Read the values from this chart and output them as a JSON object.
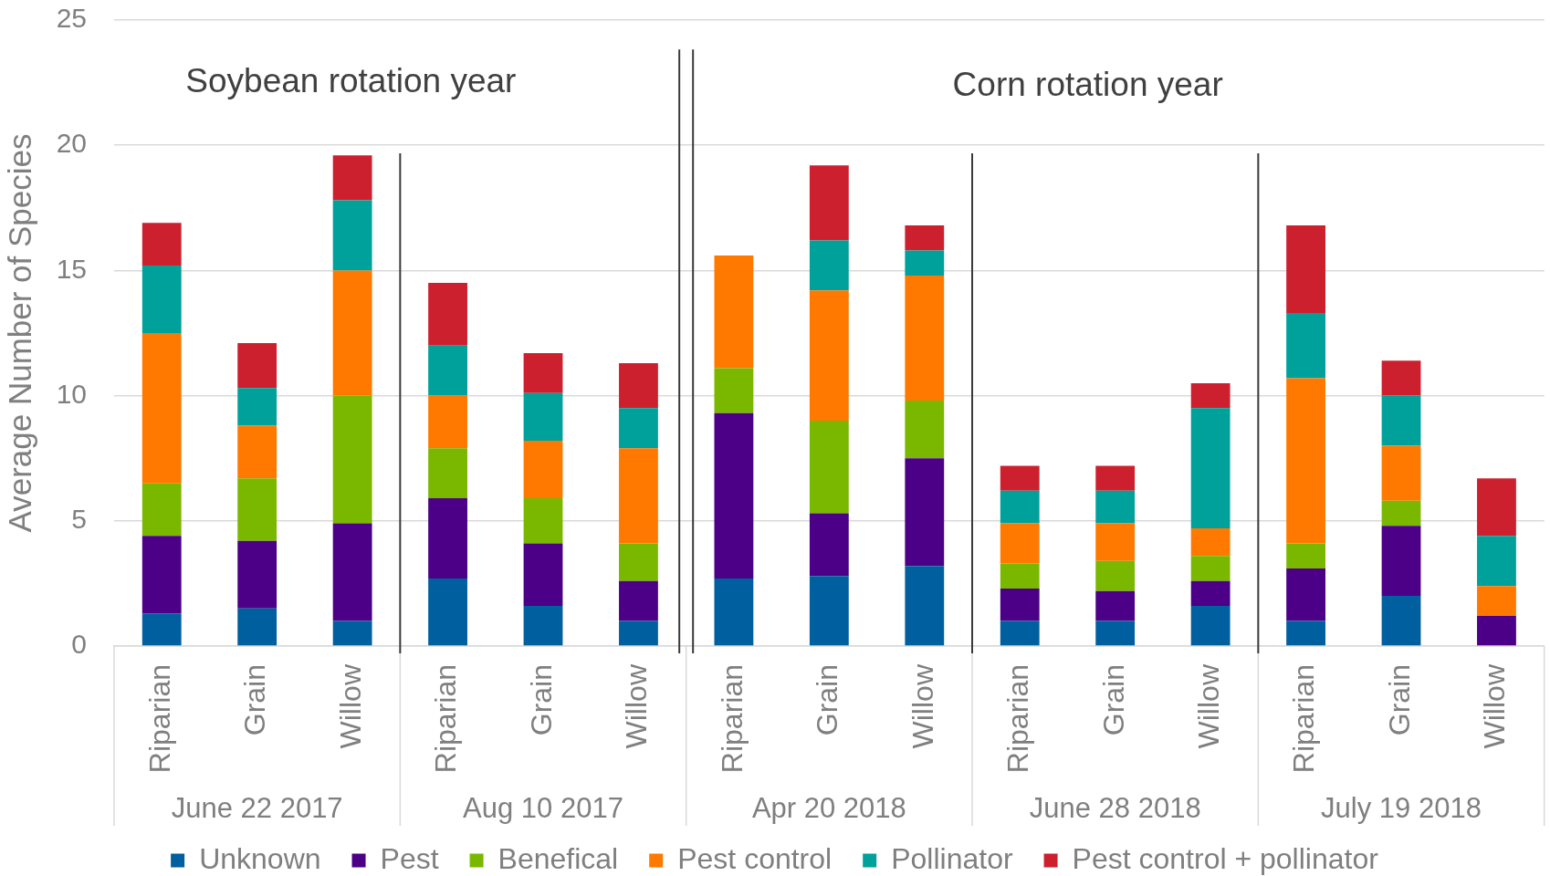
{
  "chart_data": {
    "type": "bar",
    "stacked": true,
    "ylabel": "Average Number of Species",
    "categories": [
      "Riparian",
      "Grain",
      "Willow",
      "Riparian",
      "Grain",
      "Willow",
      "Riparian",
      "Grain",
      "Willow",
      "Riparian",
      "Grain",
      "Willow",
      "Riparian",
      "Grain",
      "Willow"
    ],
    "series": [
      {
        "name": "Unknown",
        "color": "#005f9e",
        "values": [
          1.3,
          1.5,
          1.0,
          2.7,
          1.6,
          1.0,
          2.7,
          2.8,
          3.2,
          1.0,
          1.0,
          1.6,
          1.0,
          2.0,
          null
        ]
      },
      {
        "name": "Pest",
        "color": "#4b0087",
        "values": [
          3.1,
          2.7,
          3.9,
          3.2,
          2.5,
          1.6,
          6.6,
          2.5,
          4.3,
          1.3,
          1.2,
          1.0,
          2.1,
          2.8,
          1.2
        ]
      },
      {
        "name": "Benefical",
        "color": "#7ab800",
        "values": [
          2.1,
          2.5,
          5.1,
          2.0,
          1.8,
          1.5,
          1.8,
          3.7,
          2.3,
          1.0,
          1.2,
          1.0,
          1.0,
          1.0,
          null
        ]
      },
      {
        "name": "Pest control",
        "color": "#ff7900",
        "values": [
          6.0,
          2.1,
          5.0,
          2.1,
          2.3,
          3.8,
          4.5,
          5.2,
          5.0,
          1.6,
          1.5,
          1.1,
          6.6,
          2.2,
          1.2
        ]
      },
      {
        "name": "Pollinator",
        "color": "#00a19b",
        "values": [
          2.7,
          1.5,
          2.8,
          2.0,
          1.9,
          1.6,
          null,
          2.0,
          1.0,
          1.3,
          1.3,
          4.8,
          2.6,
          2.0,
          2.0
        ]
      },
      {
        "name": "Pest control + pollinator",
        "color": "#cd202f",
        "values": [
          1.7,
          1.8,
          1.8,
          2.5,
          1.6,
          1.8,
          null,
          3.0,
          1.0,
          1.0,
          1.0,
          1.0,
          3.5,
          1.4,
          2.3
        ]
      }
    ],
    "ylim": [
      0,
      25
    ],
    "yticks": [
      0,
      5,
      10,
      15,
      20,
      25
    ],
    "grid": "y",
    "legend": "bottom",
    "annotations": [
      "June 22 2017",
      "Aug 10 2017",
      "Apr 20 2018",
      "June 28 2018",
      "July 19 2018",
      "Soybean rotation year",
      "Corn rotation year"
    ]
  }
}
